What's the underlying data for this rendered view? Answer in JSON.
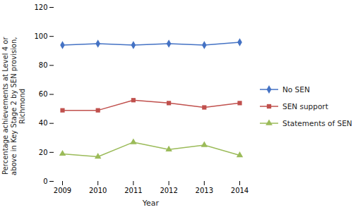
{
  "chart_data": {
    "type": "line",
    "xlabel": "Year",
    "ylabel": "Percentage achievements at Level 4 or\nabove in Key Stage 2 by SEN provision,\nRichmond",
    "x": [
      2009,
      2010,
      2011,
      2012,
      2013,
      2014
    ],
    "xlim": [
      2009,
      2014
    ],
    "xticks": [
      2009,
      2010,
      2011,
      2012,
      2013,
      2014
    ],
    "ylim": [
      0,
      120
    ],
    "yticks": [
      0,
      20,
      40,
      60,
      80,
      100,
      120
    ],
    "grid": false,
    "legend": "right",
    "series": [
      {
        "name": "No SEN",
        "color": "#4472C4",
        "marker": "diamond",
        "values": [
          94,
          95,
          94,
          95,
          94,
          96
        ]
      },
      {
        "name": "SEN support",
        "color": "#C0504D",
        "marker": "square",
        "values": [
          49,
          49,
          56,
          54,
          51,
          54
        ]
      },
      {
        "name": "Statements of SEN",
        "color": "#9BBB59",
        "marker": "triangle",
        "values": [
          19,
          17,
          27,
          22,
          25,
          18
        ]
      }
    ]
  }
}
